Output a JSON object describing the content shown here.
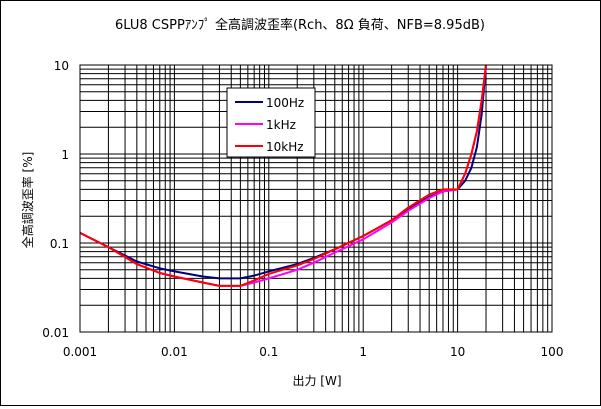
{
  "chart_data": {
    "type": "line",
    "title": "6LU8 CSPPｱﾝﾌﾟ 全高調波歪率(Rch、8Ω 負荷、NFB=8.95dB)",
    "xlabel": "出力 [W]",
    "ylabel": "全高調波歪率 [%]",
    "x_scale": "log",
    "y_scale": "log",
    "xlim": [
      0.001,
      100
    ],
    "ylim": [
      0.01,
      10
    ],
    "x_ticks": [
      "0.001",
      "0.01",
      "0.1",
      "1",
      "10",
      "100"
    ],
    "y_ticks": [
      "0.01",
      "0.1",
      "1",
      "10"
    ],
    "grid": true,
    "legend_position": "top-center",
    "series": [
      {
        "name": "100Hz",
        "color": "#000080",
        "points": [
          [
            0.001,
            0.13
          ],
          [
            0.002,
            0.09
          ],
          [
            0.004,
            0.062
          ],
          [
            0.007,
            0.052
          ],
          [
            0.01,
            0.048
          ],
          [
            0.02,
            0.042
          ],
          [
            0.03,
            0.04
          ],
          [
            0.05,
            0.04
          ],
          [
            0.07,
            0.043
          ],
          [
            0.1,
            0.048
          ],
          [
            0.2,
            0.058
          ],
          [
            0.3,
            0.068
          ],
          [
            0.5,
            0.085
          ],
          [
            1,
            0.12
          ],
          [
            2,
            0.18
          ],
          [
            3,
            0.24
          ],
          [
            5,
            0.33
          ],
          [
            7,
            0.38
          ],
          [
            10,
            0.4
          ],
          [
            12,
            0.5
          ],
          [
            14,
            0.7
          ],
          [
            16,
            1.2
          ],
          [
            18,
            2.8
          ],
          [
            20,
            10
          ]
        ]
      },
      {
        "name": "1kHz",
        "color": "#ff00ff",
        "points": [
          [
            0.001,
            0.13
          ],
          [
            0.002,
            0.09
          ],
          [
            0.004,
            0.058
          ],
          [
            0.007,
            0.046
          ],
          [
            0.01,
            0.042
          ],
          [
            0.02,
            0.036
          ],
          [
            0.03,
            0.033
          ],
          [
            0.05,
            0.033
          ],
          [
            0.07,
            0.036
          ],
          [
            0.1,
            0.04
          ],
          [
            0.2,
            0.05
          ],
          [
            0.3,
            0.06
          ],
          [
            0.5,
            0.078
          ],
          [
            1,
            0.11
          ],
          [
            2,
            0.17
          ],
          [
            3,
            0.23
          ],
          [
            5,
            0.32
          ],
          [
            7,
            0.38
          ],
          [
            10,
            0.4
          ],
          [
            12,
            0.6
          ],
          [
            14,
            1.0
          ],
          [
            16,
            1.8
          ],
          [
            18,
            4
          ],
          [
            20,
            10
          ]
        ]
      },
      {
        "name": "10kHz",
        "color": "#ff0000",
        "points": [
          [
            0.001,
            0.13
          ],
          [
            0.002,
            0.09
          ],
          [
            0.004,
            0.058
          ],
          [
            0.007,
            0.046
          ],
          [
            0.01,
            0.042
          ],
          [
            0.02,
            0.036
          ],
          [
            0.03,
            0.033
          ],
          [
            0.05,
            0.033
          ],
          [
            0.07,
            0.038
          ],
          [
            0.1,
            0.045
          ],
          [
            0.2,
            0.056
          ],
          [
            0.3,
            0.066
          ],
          [
            0.5,
            0.085
          ],
          [
            1,
            0.12
          ],
          [
            2,
            0.18
          ],
          [
            3,
            0.25
          ],
          [
            5,
            0.35
          ],
          [
            7,
            0.4
          ],
          [
            10,
            0.4
          ],
          [
            12,
            0.6
          ],
          [
            14,
            1.0
          ],
          [
            16,
            1.8
          ],
          [
            18,
            4
          ],
          [
            20,
            10
          ]
        ]
      }
    ]
  }
}
